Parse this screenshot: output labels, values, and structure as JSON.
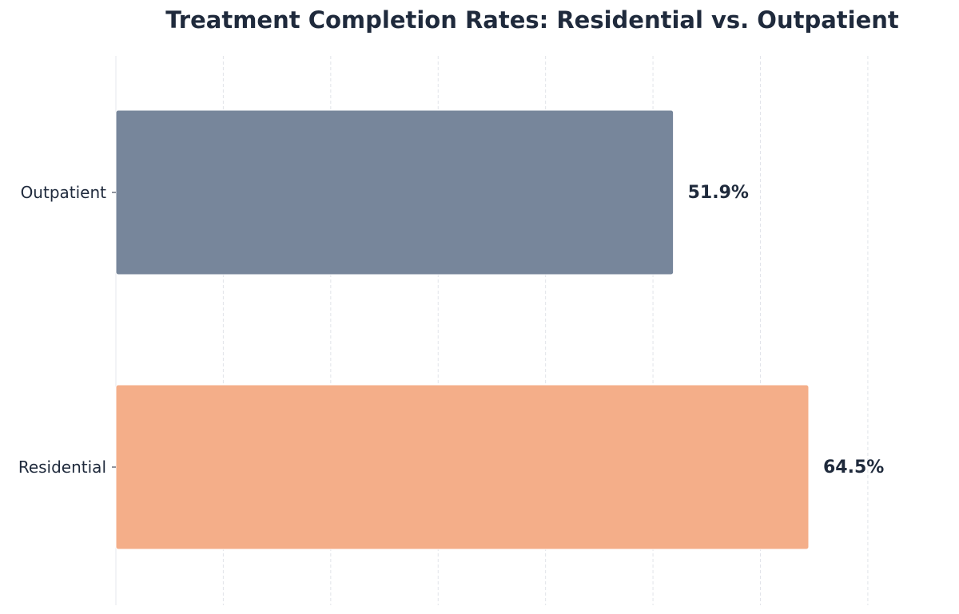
{
  "chart_data": {
    "type": "bar",
    "orientation": "horizontal",
    "title": "Treatment Completion Rates: Residential vs. Outpatient",
    "xlabel": "",
    "ylabel": "",
    "categories": [
      "Outpatient",
      "Residential"
    ],
    "values": [
      51.9,
      64.5
    ],
    "value_labels": [
      "51.9%",
      "64.5%"
    ],
    "xlim": [
      0,
      77
    ],
    "grid": true,
    "colors": [
      "#77869b",
      "#f4ae89"
    ]
  }
}
